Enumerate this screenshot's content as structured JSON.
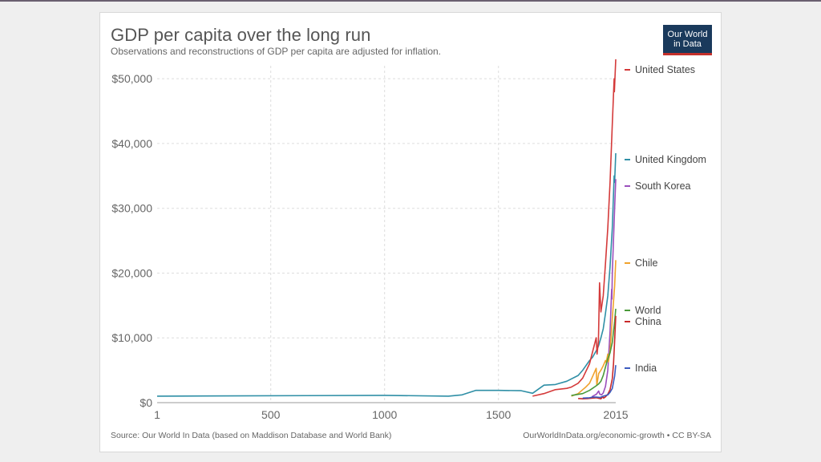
{
  "header": {
    "title": "GDP per capita over the long run",
    "subtitle": "Observations and reconstructions of GDP per capita are adjusted for inflation.",
    "logo_line1": "Our World",
    "logo_line2": "in Data"
  },
  "footer": {
    "source": "Source: Our World In Data (based on Maddison Database and World Bank)",
    "license": "OurWorldInData.org/economic-growth • CC BY-SA"
  },
  "colors": {
    "background": "#efefef",
    "card": "#ffffff",
    "logo_bg": "#1a3a5c",
    "logo_accent": "#c4302b"
  },
  "chart_data": {
    "type": "line",
    "title": "GDP per capita over the long run",
    "subtitle": "Observations and reconstructions of GDP per capita are adjusted for inflation.",
    "xlabel": "",
    "ylabel": "",
    "xlim": [
      1,
      2015
    ],
    "ylim": [
      0,
      52000
    ],
    "x_ticks": [
      1,
      500,
      1000,
      1500,
      2015
    ],
    "x_tick_labels": [
      "1",
      "500",
      "1000",
      "1500",
      "2015"
    ],
    "y_ticks": [
      0,
      10000,
      20000,
      30000,
      40000,
      50000
    ],
    "y_tick_labels": [
      "$0",
      "$10,000",
      "$20,000",
      "$30,000",
      "$40,000",
      "$50,000"
    ],
    "grid": true,
    "legend": "right-end labels",
    "series": [
      {
        "name": "United Kingdom",
        "color": "#2f8fa6",
        "x": [
          1,
          1000,
          1280,
          1340,
          1400,
          1500,
          1600,
          1650,
          1700,
          1750,
          1800,
          1850,
          1870,
          1900,
          1913,
          1929,
          1939,
          1950,
          1960,
          1970,
          1980,
          1990,
          2000,
          2008,
          2010,
          2015
        ],
        "y": [
          1000,
          1130,
          1000,
          1200,
          1900,
          1900,
          1850,
          1450,
          2700,
          2800,
          3300,
          4200,
          5000,
          6500,
          7000,
          8000,
          8700,
          10000,
          11400,
          13800,
          16500,
          21000,
          27000,
          35000,
          34000,
          38500
        ]
      },
      {
        "name": "United States",
        "color": "#d43a3a",
        "x": [
          1650,
          1700,
          1750,
          1800,
          1820,
          1850,
          1870,
          1900,
          1913,
          1929,
          1933,
          1939,
          1944,
          1950,
          1960,
          1970,
          1980,
          1990,
          2000,
          2008,
          2009,
          2015
        ],
        "y": [
          1000,
          1400,
          2000,
          2200,
          2400,
          3000,
          3800,
          6000,
          7800,
          10000,
          7500,
          9500,
          18500,
          14000,
          16500,
          21500,
          27000,
          34000,
          43000,
          50000,
          48000,
          53000
        ]
      },
      {
        "name": "South Korea",
        "color": "#9b4fbd",
        "x": [
          1910,
          1920,
          1930,
          1940,
          1945,
          1953,
          1960,
          1970,
          1980,
          1990,
          1997,
          1998,
          2000,
          2010,
          2015
        ],
        "y": [
          900,
          1100,
          1300,
          1800,
          1300,
          1200,
          1500,
          2500,
          5000,
          11000,
          17500,
          16000,
          20000,
          30000,
          34500
        ]
      },
      {
        "name": "Chile",
        "color": "#f0a22c",
        "x": [
          1820,
          1850,
          1870,
          1880,
          1900,
          1913,
          1929,
          1932,
          1940,
          1950,
          1960,
          1970,
          1973,
          1980,
          1983,
          1990,
          2000,
          2010,
          2015
        ],
        "y": [
          1000,
          1400,
          2000,
          2300,
          3000,
          4000,
          5300,
          2700,
          4500,
          5000,
          5700,
          6500,
          6200,
          7500,
          6300,
          8000,
          13000,
          18000,
          22000
        ]
      },
      {
        "name": "World",
        "color": "#4a9a3a",
        "x": [
          1820,
          1870,
          1900,
          1913,
          1929,
          1940,
          1950,
          1960,
          1970,
          1980,
          1990,
          2000,
          2010,
          2015
        ],
        "y": [
          1100,
          1400,
          1900,
          2200,
          2600,
          2900,
          3300,
          4200,
          5500,
          6800,
          7700,
          9300,
          12500,
          14500
        ]
      },
      {
        "name": "China",
        "color": "#c92a2a",
        "x": [
          1850,
          1870,
          1890,
          1913,
          1929,
          1950,
          1958,
          1962,
          1970,
          1980,
          1990,
          2000,
          2005,
          2010,
          2015
        ],
        "y": [
          650,
          600,
          620,
          700,
          750,
          600,
          900,
          700,
          900,
          1300,
          2000,
          3700,
          6000,
          9500,
          13400
        ]
      },
      {
        "name": "India",
        "color": "#3c5bbf",
        "x": [
          1870,
          1900,
          1913,
          1930,
          1947,
          1950,
          1960,
          1970,
          1980,
          1990,
          2000,
          2010,
          2015
        ],
        "y": [
          700,
          750,
          850,
          850,
          800,
          850,
          1000,
          1100,
          1200,
          1600,
          2200,
          4100,
          5800
        ]
      }
    ],
    "end_labels": [
      {
        "name": "United States",
        "color": "#d43a3a"
      },
      {
        "name": "United Kingdom",
        "color": "#2f8fa6"
      },
      {
        "name": "South Korea",
        "color": "#9b4fbd"
      },
      {
        "name": "Chile",
        "color": "#f0a22c"
      },
      {
        "name": "World",
        "color": "#4a9a3a"
      },
      {
        "name": "China",
        "color": "#c92a2a"
      },
      {
        "name": "India",
        "color": "#3c5bbf"
      }
    ]
  }
}
